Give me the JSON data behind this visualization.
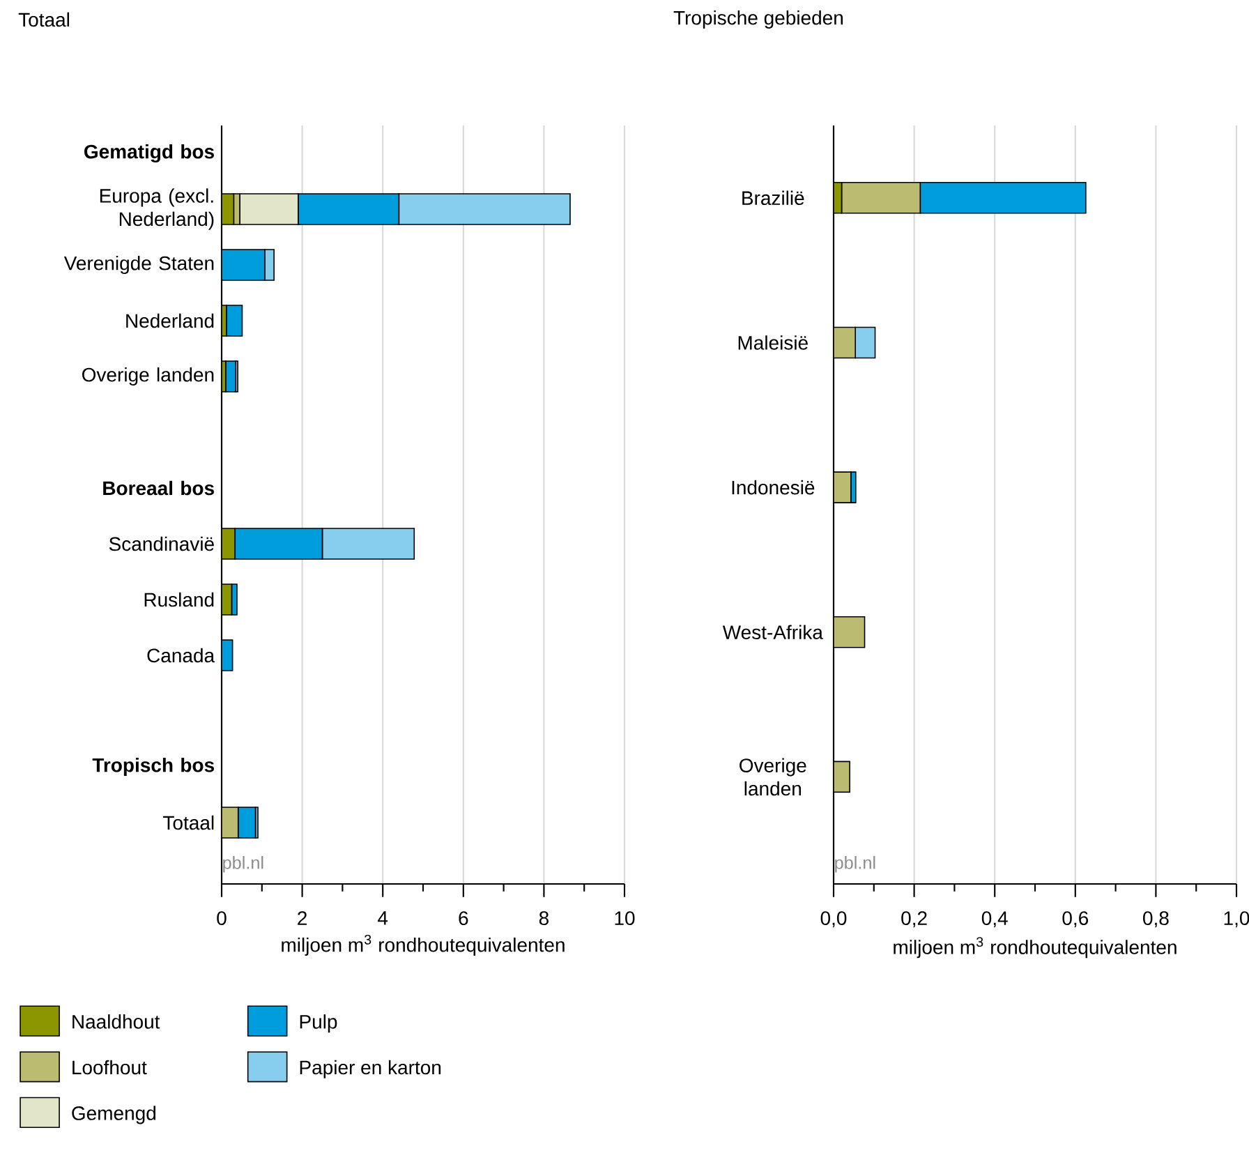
{
  "chart_data": [
    {
      "type": "bar",
      "orientation": "horizontal",
      "stacked": true,
      "title": "Totaal",
      "xlabel": "miljoen m$^{3}$ rondhoutequivalenten",
      "categories": [
        "**Gematigd bos**",
        "Europa (excl. Nederland)",
        "Verenigde Staten",
        "Nederland",
        "Overige landen",
        null,
        "**Boreaal bos**",
        "Scandinavië",
        "Rusland",
        "Canada",
        null,
        "**Tropisch bos**",
        "Totaal"
      ],
      "series": [
        {
          "name": "Naaldhout",
          "color": "#8c9600",
          "values": [
            null,
            0.3,
            0,
            0.12,
            0.1,
            null,
            null,
            0.33,
            0.25,
            0,
            null,
            null,
            0
          ]
        },
        {
          "name": "Loofhout",
          "color": "#bcbb72",
          "values": [
            null,
            0.15,
            0,
            0,
            0,
            null,
            null,
            0,
            0,
            0,
            null,
            null,
            0.41
          ]
        },
        {
          "name": "Gemengd",
          "color": "#e3e5c9",
          "values": [
            null,
            1.45,
            0,
            0,
            0,
            null,
            null,
            0,
            0,
            0,
            null,
            null,
            0
          ]
        },
        {
          "name": "Pulp",
          "color": "#009ddd",
          "values": [
            null,
            2.5,
            1.07,
            0.39,
            0.25,
            null,
            null,
            2.17,
            0.13,
            0.27,
            null,
            null,
            0.43
          ]
        },
        {
          "name": "Papier en karton",
          "color": "#87ceee",
          "values": [
            null,
            4.25,
            0.23,
            0,
            0.05,
            null,
            null,
            2.28,
            0,
            0,
            null,
            null,
            0.06
          ]
        }
      ],
      "xlim": [
        0,
        10
      ],
      "xticks": [
        0,
        2,
        4,
        6,
        8,
        10
      ],
      "grid": "x",
      "legend": "bottom left",
      "annotations": [
        "pbl.nl"
      ]
    },
    {
      "type": "bar",
      "orientation": "horizontal",
      "stacked": true,
      "title": "Tropische gebieden",
      "xlabel": "miljoen m$^{3}$ rondhoutequivalenten",
      "categories": [
        "Brazilië",
        "Maleisië",
        "Indonesië",
        "West-Afrika",
        "Overige landen"
      ],
      "series": [
        {
          "color": "#8c9600",
          "values": [
            0.02,
            0,
            0,
            0,
            0
          ]
        },
        {
          "color": "#bcbb72",
          "values": [
            0.195,
            0.054,
            0.043,
            0.077,
            0.04
          ]
        },
        {
          "color": "#009ddd",
          "values": [
            0.411,
            0,
            0.012,
            0,
            0
          ]
        },
        {
          "color": "#87ceee",
          "values": [
            0,
            0.049,
            0,
            0,
            0
          ]
        }
      ],
      "xlim": [
        0,
        1.0
      ],
      "xticks": [
        {
          "value": 0,
          "label": "0,0"
        },
        {
          "value": 0.2,
          "label": "0,2"
        },
        {
          "value": 0.4,
          "label": "0,4"
        },
        {
          "value": 0.6,
          "label": "0,6"
        },
        {
          "value": 0.8,
          "label": "0,8"
        },
        {
          "value": 1.0,
          "label": "1,0"
        }
      ],
      "grid": "x",
      "annotations": [
        "pbl.nl"
      ]
    }
  ]
}
